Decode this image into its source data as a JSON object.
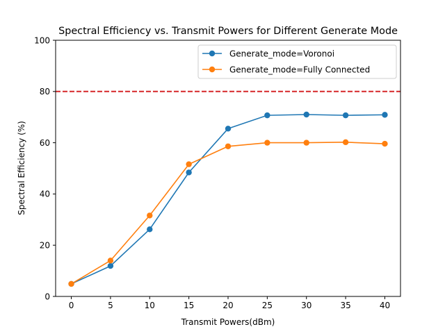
{
  "chart_data": {
    "type": "line",
    "title": "Spectral Efficiency vs. Transmit Powers for Different Generate Mode",
    "xlabel": "Transmit Powers(dBm)",
    "ylabel": "Spectral Efficiency (%)",
    "x": [
      0,
      5,
      10,
      15,
      20,
      25,
      30,
      35,
      40
    ],
    "x_ticks": [
      "0",
      "5",
      "10",
      "15",
      "20",
      "25",
      "30",
      "35",
      "40"
    ],
    "y_ticks": [
      "0",
      "20",
      "40",
      "60",
      "80",
      "100"
    ],
    "xlim": [
      -2,
      42
    ],
    "ylim": [
      0,
      100
    ],
    "grid": false,
    "legend_position": "top-right",
    "series": [
      {
        "name": "Generate_mode=Voronoi",
        "color": "#1f77b4",
        "marker": "circle",
        "values": [
          4.9,
          11.9,
          26.2,
          48.4,
          65.5,
          70.7,
          71.0,
          70.7,
          70.9
        ]
      },
      {
        "name": "Generate_mode=Fully Connected",
        "color": "#ff7f0e",
        "marker": "circle",
        "values": [
          4.9,
          14.0,
          31.6,
          51.6,
          58.6,
          60.0,
          60.0,
          60.2,
          59.6
        ]
      }
    ],
    "reference_lines": [
      {
        "y": 80,
        "color": "#d62728",
        "style": "dashed"
      }
    ]
  }
}
